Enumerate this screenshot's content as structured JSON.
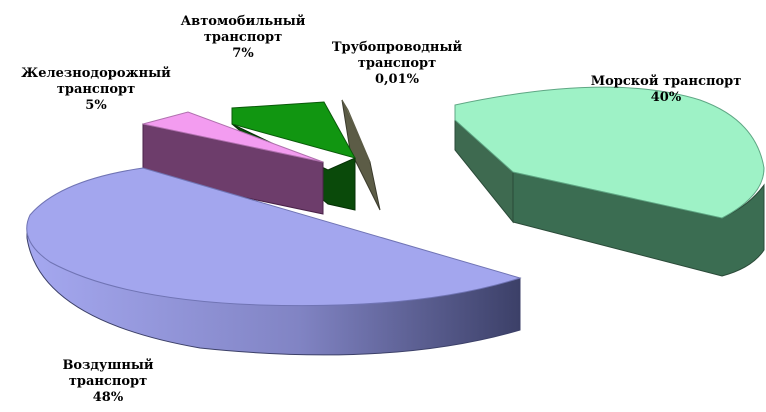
{
  "chart_data": {
    "type": "pie",
    "style": "3d-exploded",
    "slices": [
      {
        "label_lines": [
          "Морской транспорт"
        ],
        "pct": "40%",
        "value": 40,
        "top_color": "#9ef2c6",
        "side_color": "#3b6d52"
      },
      {
        "label_lines": [
          "Воздушный",
          "транспорт"
        ],
        "pct": "48%",
        "value": 48,
        "top_color": "#a3a6ee",
        "side_color": "#454a72"
      },
      {
        "label_lines": [
          "Железнодорожный",
          "транспорт"
        ],
        "pct": "5%",
        "value": 5,
        "top_color": "#f39cf0",
        "side_color": "#6d3d6b"
      },
      {
        "label_lines": [
          "Автомобильный",
          "транспорт"
        ],
        "pct": "7%",
        "value": 7,
        "top_color": "#119611",
        "side_color": "#0a4a0a"
      },
      {
        "label_lines": [
          "Трубопроводный",
          "транспорт"
        ],
        "pct": "0,01%",
        "value": 0.01,
        "top_color": "#8c8c6a",
        "side_color": "#5c5c46"
      }
    ]
  }
}
